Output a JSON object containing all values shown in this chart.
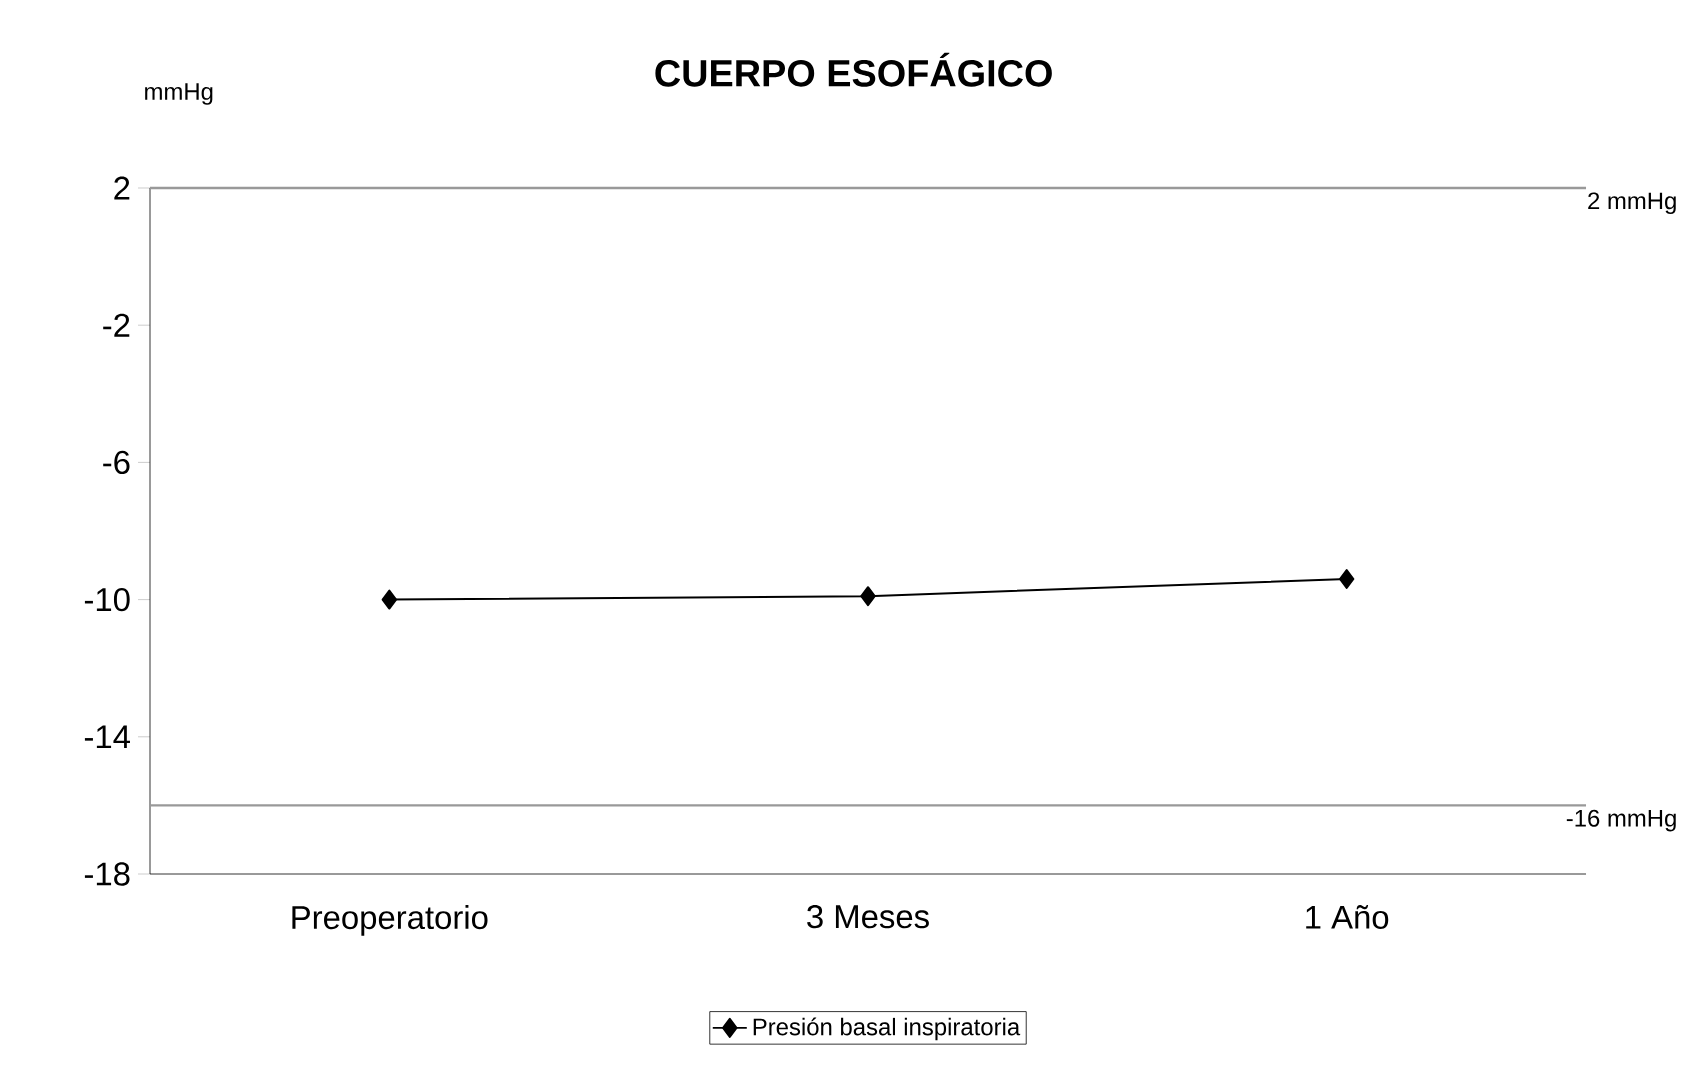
{
  "chart_data": {
    "type": "line",
    "title": "CUERPO ESOFÁGICO",
    "ylabel": "mmHg",
    "categories": [
      "Preoperatorio",
      "3 Meses",
      "1 Año"
    ],
    "series": [
      {
        "name": "Presión basal inspiratoria",
        "color": "#000000",
        "values": [
          -10,
          -9.9,
          -9.4
        ]
      }
    ],
    "ylim": [
      -18,
      2
    ],
    "yticks": [
      2,
      -2,
      -6,
      -10,
      -14,
      -18
    ],
    "ref_lines": [
      {
        "axis": "y",
        "value": 2,
        "label": "2 mmHg",
        "color": "#999999"
      },
      {
        "axis": "y",
        "value": -16,
        "label": "-16 mmHg",
        "color": "#999999"
      }
    ],
    "legend": "bottom",
    "marker": "diamond",
    "line_style": "solid",
    "grid": false
  }
}
